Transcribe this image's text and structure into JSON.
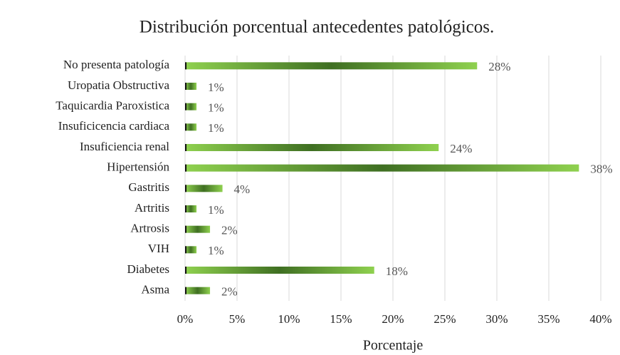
{
  "chart_data": {
    "type": "bar",
    "orientation": "horizontal",
    "title": "Distribución porcentual antecedentes patológicos.",
    "x_label": "Porcentaje",
    "categories": [
      "No presenta patología",
      "Uropatia Obstructiva",
      "Taquicardia Paroxistica",
      "Insuficicencia cardiaca",
      "Insuficiencia renal",
      "Hipertensión",
      "Gastritis",
      "Artritis",
      "Artrosis",
      "VIH",
      "Diabetes",
      "Asma"
    ],
    "values": [
      28.1,
      1.1,
      1.1,
      1.1,
      24.4,
      37.9,
      3.6,
      1.1,
      2.4,
      1.1,
      18.2,
      2.4
    ],
    "value_labels": [
      "28%",
      "1%",
      "1%",
      "1%",
      "24%",
      "38%",
      "4%",
      "1%",
      "2%",
      "1%",
      "18%",
      "2%"
    ],
    "color": "#7cc242",
    "xlim": [
      0,
      40
    ],
    "xticks": [
      {
        "value": 0,
        "label": "0%"
      },
      {
        "value": 5,
        "label": "5%"
      },
      {
        "value": 10,
        "label": "10%"
      },
      {
        "value": 15,
        "label": "15%"
      },
      {
        "value": 20,
        "label": "20%"
      },
      {
        "value": 25,
        "label": "25%"
      },
      {
        "value": 30,
        "label": "30%"
      },
      {
        "value": 35,
        "label": "35%"
      },
      {
        "value": 40,
        "label": "40%"
      }
    ],
    "grid": true
  }
}
